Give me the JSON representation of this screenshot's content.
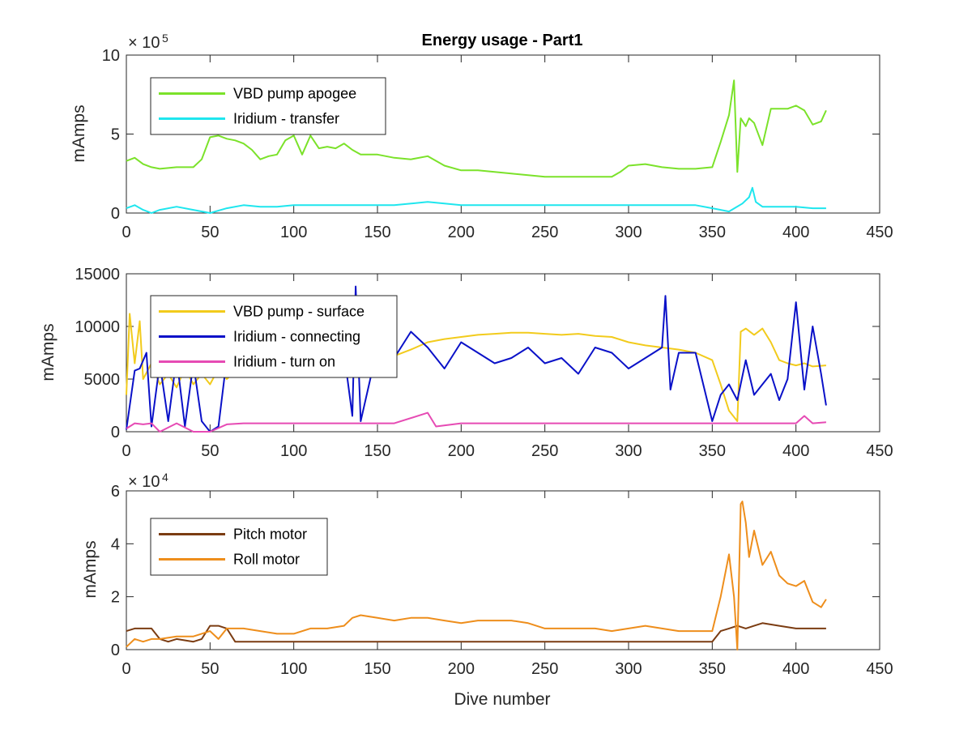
{
  "chart_data": [
    {
      "type": "line",
      "title": "Energy usage - Part1",
      "ylabel": "mAmps",
      "xlabel": "",
      "xlim": [
        0,
        450
      ],
      "ylim": [
        0,
        10
      ],
      "y_multiplier_base": "× 10",
      "y_multiplier_exp": "5",
      "xticks": [
        "0",
        "50",
        "100",
        "150",
        "200",
        "250",
        "300",
        "350",
        "400",
        "450"
      ],
      "yticks": [
        "0",
        "5",
        "10"
      ],
      "legend_position": "upper-left",
      "series": [
        {
          "name": "VBD pump apogee",
          "color": "#7be22a",
          "x": [
            0,
            5,
            10,
            15,
            20,
            30,
            40,
            45,
            50,
            55,
            60,
            65,
            70,
            75,
            80,
            85,
            90,
            95,
            100,
            105,
            110,
            115,
            120,
            125,
            130,
            135,
            140,
            150,
            160,
            170,
            180,
            190,
            200,
            210,
            220,
            230,
            240,
            250,
            260,
            270,
            280,
            290,
            295,
            300,
            310,
            320,
            330,
            340,
            350,
            355,
            360,
            363,
            365,
            367,
            370,
            372,
            375,
            380,
            385,
            390,
            395,
            400,
            405,
            410,
            415,
            418
          ],
          "y": [
            3.3,
            3.5,
            3.1,
            2.9,
            2.8,
            2.9,
            2.9,
            3.4,
            4.8,
            4.9,
            4.7,
            4.6,
            4.4,
            4.0,
            3.4,
            3.6,
            3.7,
            4.6,
            4.9,
            3.7,
            4.9,
            4.1,
            4.2,
            4.1,
            4.4,
            4.0,
            3.7,
            3.7,
            3.5,
            3.4,
            3.6,
            3.0,
            2.7,
            2.7,
            2.6,
            2.5,
            2.4,
            2.3,
            2.3,
            2.3,
            2.3,
            2.3,
            2.6,
            3.0,
            3.1,
            2.9,
            2.8,
            2.8,
            2.9,
            4.5,
            6.2,
            8.4,
            2.6,
            6.0,
            5.5,
            6.0,
            5.7,
            4.3,
            6.6,
            6.6,
            6.6,
            6.8,
            6.5,
            5.6,
            5.8,
            6.5
          ]
        },
        {
          "name": "Iridium - transfer",
          "color": "#1fe6ee",
          "x": [
            0,
            5,
            10,
            15,
            20,
            30,
            40,
            50,
            60,
            70,
            80,
            90,
            100,
            120,
            140,
            160,
            180,
            200,
            220,
            240,
            260,
            280,
            300,
            320,
            340,
            350,
            360,
            368,
            372,
            374,
            376,
            380,
            390,
            400,
            410,
            418
          ],
          "y": [
            0.3,
            0.5,
            0.2,
            0.0,
            0.2,
            0.4,
            0.2,
            0.0,
            0.3,
            0.5,
            0.4,
            0.4,
            0.5,
            0.5,
            0.5,
            0.5,
            0.7,
            0.5,
            0.5,
            0.5,
            0.5,
            0.5,
            0.5,
            0.5,
            0.5,
            0.3,
            0.1,
            0.6,
            1.0,
            1.6,
            0.7,
            0.4,
            0.4,
            0.4,
            0.3,
            0.3
          ]
        }
      ]
    },
    {
      "type": "line",
      "title": "",
      "ylabel": "mAmps",
      "xlabel": "",
      "xlim": [
        0,
        450
      ],
      "ylim": [
        0,
        15000
      ],
      "xticks": [
        "0",
        "50",
        "100",
        "150",
        "200",
        "250",
        "300",
        "350",
        "400",
        "450"
      ],
      "yticks": [
        "0",
        "5000",
        "10000",
        "15000"
      ],
      "legend_position": "upper-left",
      "series": [
        {
          "name": "VBD pump - surface",
          "color": "#f2cb1c",
          "x": [
            0,
            2,
            5,
            8,
            10,
            15,
            20,
            25,
            30,
            35,
            40,
            45,
            50,
            55,
            60,
            70,
            80,
            90,
            100,
            110,
            120,
            130,
            140,
            150,
            160,
            170,
            180,
            190,
            200,
            210,
            220,
            230,
            240,
            250,
            260,
            270,
            280,
            290,
            300,
            310,
            320,
            330,
            340,
            350,
            355,
            360,
            365,
            367,
            370,
            375,
            380,
            385,
            390,
            395,
            400,
            405,
            410,
            418
          ],
          "y": [
            3500,
            11200,
            6500,
            10500,
            5000,
            6500,
            4500,
            5500,
            4200,
            6000,
            4500,
            5500,
            4500,
            6000,
            5000,
            6500,
            6000,
            6500,
            5500,
            7000,
            6800,
            6000,
            7000,
            7500,
            7200,
            7800,
            8500,
            8800,
            9000,
            9200,
            9300,
            9400,
            9400,
            9300,
            9200,
            9300,
            9100,
            9000,
            8500,
            8200,
            8000,
            7800,
            7500,
            6800,
            4500,
            2000,
            1000,
            9500,
            9800,
            9200,
            9800,
            8500,
            6800,
            6500,
            6300,
            6500,
            6200,
            6300
          ]
        },
        {
          "name": "Iridium - connecting",
          "color": "#0a11c8",
          "x": [
            0,
            5,
            8,
            12,
            15,
            20,
            25,
            30,
            35,
            40,
            45,
            50,
            55,
            60,
            70,
            80,
            90,
            100,
            110,
            120,
            130,
            135,
            137,
            140,
            150,
            160,
            170,
            180,
            190,
            200,
            210,
            220,
            230,
            240,
            250,
            260,
            270,
            280,
            290,
            300,
            310,
            320,
            322,
            325,
            330,
            340,
            350,
            355,
            360,
            365,
            370,
            375,
            380,
            385,
            390,
            395,
            400,
            405,
            410,
            415,
            418
          ],
          "y": [
            200,
            5800,
            6000,
            7500,
            500,
            6500,
            1000,
            7000,
            500,
            6500,
            1000,
            0,
            500,
            7000,
            8000,
            6500,
            7500,
            8500,
            6500,
            7000,
            7500,
            1500,
            13800,
            1000,
            8000,
            7000,
            9500,
            8000,
            6000,
            8500,
            7500,
            6500,
            7000,
            8000,
            6500,
            7000,
            5500,
            8000,
            7500,
            6000,
            7000,
            8000,
            12900,
            4000,
            7500,
            7500,
            1000,
            3500,
            4500,
            3000,
            6800,
            3500,
            4500,
            5500,
            3000,
            5000,
            12300,
            4000,
            10000,
            5500,
            2500
          ]
        },
        {
          "name": "Iridium - turn on",
          "color": "#e64bb4",
          "x": [
            0,
            5,
            10,
            15,
            20,
            30,
            40,
            50,
            60,
            70,
            80,
            90,
            100,
            120,
            140,
            160,
            180,
            185,
            200,
            220,
            240,
            260,
            280,
            300,
            320,
            340,
            350,
            360,
            370,
            380,
            390,
            400,
            405,
            410,
            418
          ],
          "y": [
            300,
            800,
            700,
            800,
            0,
            800,
            0,
            0,
            700,
            800,
            800,
            800,
            800,
            800,
            800,
            800,
            1800,
            500,
            800,
            800,
            800,
            800,
            800,
            800,
            800,
            800,
            800,
            800,
            800,
            800,
            800,
            800,
            1500,
            800,
            900
          ]
        }
      ]
    },
    {
      "type": "line",
      "title": "",
      "ylabel": "mAmps",
      "xlabel": "Dive number",
      "xlim": [
        0,
        450
      ],
      "ylim": [
        0,
        6
      ],
      "y_multiplier_base": "× 10",
      "y_multiplier_exp": "4",
      "xticks": [
        "0",
        "50",
        "100",
        "150",
        "200",
        "250",
        "300",
        "350",
        "400",
        "450"
      ],
      "yticks": [
        "0",
        "2",
        "4",
        "6"
      ],
      "legend_position": "upper-left",
      "series": [
        {
          "name": "Pitch motor",
          "color": "#7b3c12",
          "x": [
            0,
            5,
            10,
            15,
            20,
            25,
            30,
            40,
            45,
            50,
            55,
            60,
            65,
            70,
            80,
            90,
            100,
            120,
            140,
            160,
            180,
            200,
            220,
            240,
            260,
            280,
            300,
            320,
            340,
            350,
            355,
            360,
            365,
            370,
            375,
            380,
            390,
            400,
            410,
            418
          ],
          "y": [
            0.7,
            0.8,
            0.8,
            0.8,
            0.4,
            0.3,
            0.4,
            0.3,
            0.4,
            0.9,
            0.9,
            0.8,
            0.3,
            0.3,
            0.3,
            0.3,
            0.3,
            0.3,
            0.3,
            0.3,
            0.3,
            0.3,
            0.3,
            0.3,
            0.3,
            0.3,
            0.3,
            0.3,
            0.3,
            0.3,
            0.7,
            0.8,
            0.9,
            0.8,
            0.9,
            1.0,
            0.9,
            0.8,
            0.8,
            0.8
          ]
        },
        {
          "name": "Roll motor",
          "color": "#ee8e1c",
          "x": [
            0,
            5,
            10,
            15,
            20,
            30,
            40,
            45,
            50,
            55,
            60,
            70,
            80,
            90,
            100,
            110,
            120,
            130,
            135,
            140,
            150,
            160,
            170,
            180,
            190,
            200,
            210,
            220,
            230,
            240,
            250,
            260,
            270,
            280,
            290,
            300,
            310,
            320,
            330,
            340,
            350,
            355,
            360,
            363,
            365,
            367,
            368,
            370,
            372,
            375,
            380,
            385,
            390,
            395,
            400,
            405,
            410,
            415,
            418
          ],
          "y": [
            0.1,
            0.4,
            0.3,
            0.4,
            0.4,
            0.5,
            0.5,
            0.6,
            0.7,
            0.4,
            0.8,
            0.8,
            0.7,
            0.6,
            0.6,
            0.8,
            0.8,
            0.9,
            1.2,
            1.3,
            1.2,
            1.1,
            1.2,
            1.2,
            1.1,
            1.0,
            1.1,
            1.1,
            1.1,
            1.0,
            0.8,
            0.8,
            0.8,
            0.8,
            0.7,
            0.8,
            0.9,
            0.8,
            0.7,
            0.7,
            0.7,
            2.0,
            3.6,
            2.0,
            0.0,
            5.5,
            5.6,
            4.8,
            3.5,
            4.5,
            3.2,
            3.7,
            2.8,
            2.5,
            2.4,
            2.6,
            1.8,
            1.6,
            1.9
          ]
        }
      ]
    }
  ]
}
